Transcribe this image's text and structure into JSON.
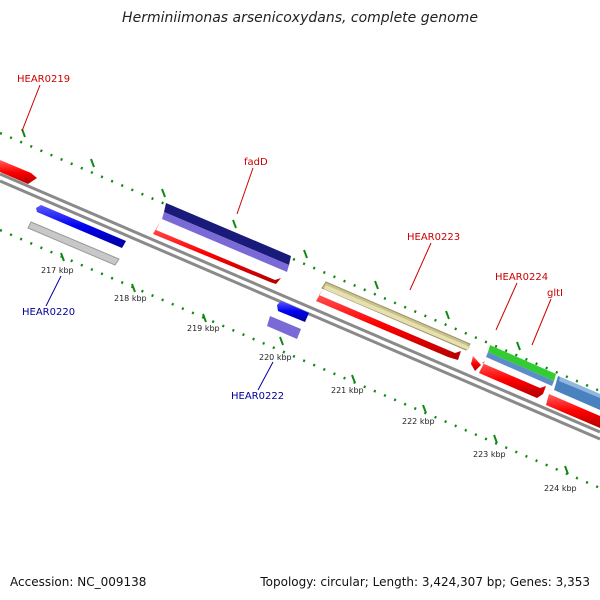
{
  "title": "Herminiimonas arsenicoxydans, complete genome",
  "footer": {
    "accession": "Accession: NC_009138",
    "summary": "Topology: circular; Length: 3,424,307 bp; Genes: 3,353"
  },
  "scale": {
    "unit": "kbp",
    "tick_labels": [
      "217 kbp",
      "218 kbp",
      "219 kbp",
      "220 kbp",
      "221 kbp",
      "222 kbp",
      "223 kbp",
      "224 kbp"
    ]
  },
  "gene_labels": {
    "top": [
      "HEAR0219",
      "fadD",
      "HEAR0223",
      "HEAR0224",
      "gltI"
    ],
    "bottom": [
      "HEAR0220",
      "HEAR0222"
    ]
  },
  "colors": {
    "forward_gene": "#ff0000",
    "reverse_gene": "#0000ee",
    "backbone": "#808080",
    "scale_ticks": "#118811",
    "label_red": "#cc0000",
    "label_blue": "#000099"
  }
}
